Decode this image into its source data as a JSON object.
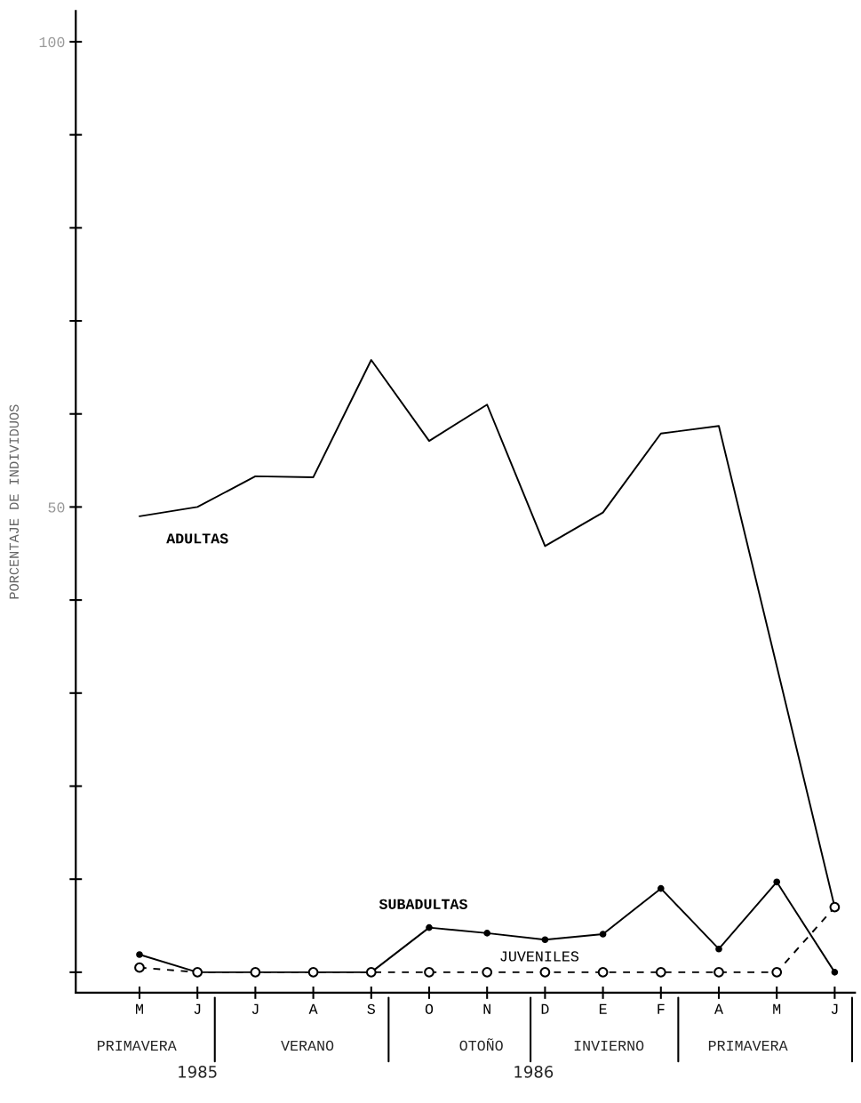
{
  "chart_data": {
    "type": "line",
    "ylabel": "PORCENTAJE DE INDIVIDUOS",
    "categories": [
      "M",
      "J",
      "J",
      "A",
      "S",
      "O",
      "N",
      "D",
      "E",
      "F",
      "A",
      "M",
      "J"
    ],
    "series": [
      {
        "name": "ADULTAS",
        "color": "#000000",
        "marker": "none",
        "line_style": "solid",
        "values": [
          49.0,
          50.0,
          53.3,
          53.2,
          65.8,
          57.1,
          61.0,
          45.8,
          49.4,
          57.9,
          58.7,
          32.9,
          7.0
        ]
      },
      {
        "name": "SUBADULTAS",
        "color": "#000000",
        "marker": "circle",
        "line_style": "solid",
        "values": [
          1.9,
          0,
          0,
          0,
          0,
          4.8,
          4.2,
          3.5,
          4.1,
          9.0,
          2.5,
          9.7,
          0
        ]
      },
      {
        "name": "JUVENILES",
        "color": "#000000",
        "marker": "circle",
        "line_style": "dashed",
        "values": [
          0.5,
          0,
          0,
          0,
          0,
          0,
          0,
          0,
          0,
          0,
          0,
          0,
          7.0
        ]
      }
    ],
    "ylim": [
      -2.2,
      103.3
    ],
    "yticks": [
      {
        "value": 0,
        "label": null
      },
      {
        "value": 10,
        "label": null
      },
      {
        "value": 20,
        "label": null
      },
      {
        "value": 30,
        "label": null
      },
      {
        "value": 40,
        "label": null
      },
      50,
      {
        "value": 60,
        "label": null
      },
      {
        "value": 70,
        "label": null
      },
      {
        "value": 80,
        "label": null
      },
      {
        "value": 90,
        "label": null
      },
      100
    ],
    "grid": false,
    "legend": false,
    "annotations": [
      "PRIMAVERA",
      "VERANO",
      "OTOÑO",
      "INVIERNO",
      "PRIMAVERA",
      "1985",
      "1986"
    ]
  }
}
